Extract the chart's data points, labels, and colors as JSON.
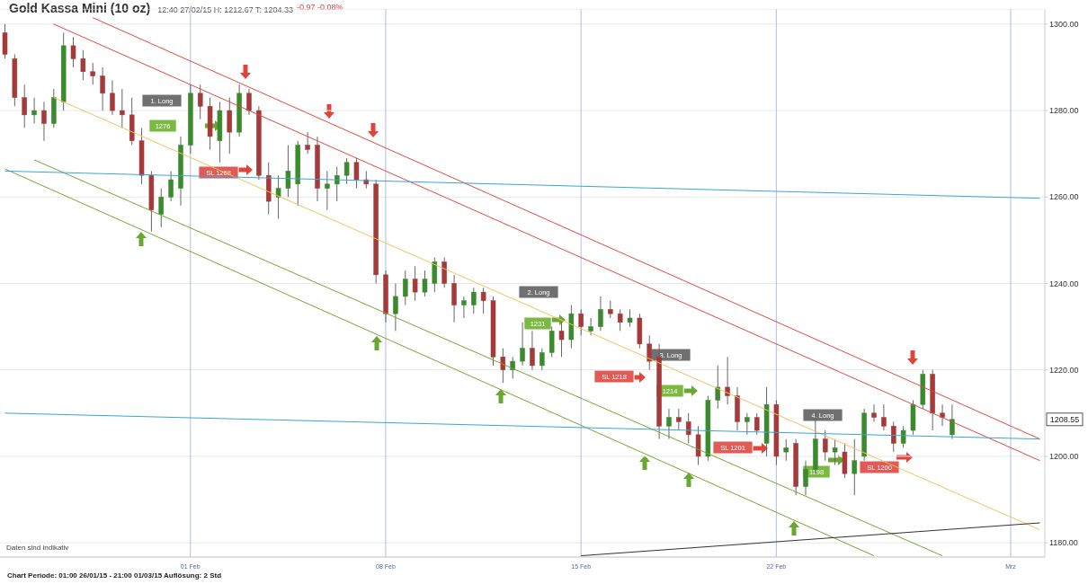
{
  "chart_data": {
    "type": "candlestick",
    "title": "Gold Kassa Mini (10 oz)",
    "subtitle": "12:40 27/02/15   H: 1212.67   T: 1204.33",
    "categories": [
      null,
      null,
      null,
      null,
      null,
      null,
      null,
      null,
      null,
      null,
      null,
      null,
      null,
      null,
      null,
      null,
      null,
      null,
      null,
      "01 Feb",
      null,
      null,
      null,
      null,
      null,
      null,
      null,
      null,
      null,
      null,
      null,
      null,
      null,
      null,
      null,
      null,
      null,
      null,
      null,
      "08 Feb",
      null,
      null,
      null,
      null,
      null,
      null,
      null,
      null,
      null,
      null,
      null,
      null,
      null,
      null,
      null,
      null,
      null,
      null,
      null,
      "15 Feb",
      null,
      null,
      null,
      null,
      null,
      null,
      null,
      null,
      null,
      null,
      null,
      null,
      null,
      null,
      null,
      null,
      null,
      null,
      null,
      "22 Feb",
      null,
      null,
      null,
      null,
      null,
      null,
      null,
      null,
      null,
      null,
      null,
      null,
      null,
      null,
      null,
      null,
      null,
      null,
      null,
      null,
      null,
      null,
      null,
      "Mrz",
      null,
      null,
      null
    ],
    "ohlc": [
      [
        1298,
        1300,
        1292,
        1293
      ],
      [
        1292,
        1293,
        1281,
        1283
      ],
      [
        1283,
        1286,
        1276,
        1279
      ],
      [
        1279,
        1283,
        1277,
        1280
      ],
      [
        1280,
        1282,
        1273,
        1277
      ],
      [
        1277,
        1285,
        1276,
        1283
      ],
      [
        1282,
        1298,
        1280,
        1295
      ],
      [
        1295,
        1297,
        1290,
        1292
      ],
      [
        1292,
        1294,
        1287,
        1289
      ],
      [
        1289,
        1291,
        1286,
        1288
      ],
      [
        1288,
        1290,
        1280,
        1284
      ],
      [
        1284,
        1287,
        1279,
        1280
      ],
      [
        1280,
        1285,
        1276,
        1279
      ],
      [
        1279,
        1283,
        1272,
        1273
      ],
      [
        1273,
        1276,
        1263,
        1265
      ],
      [
        1265,
        1266,
        1252,
        1257
      ],
      [
        1256,
        1262,
        1253,
        1260
      ],
      [
        1260,
        1266,
        1259,
        1264
      ],
      [
        1262,
        1274,
        1258,
        1272
      ],
      [
        1272,
        1286,
        1270,
        1284
      ],
      [
        1284,
        1286,
        1278,
        1281
      ],
      [
        1281,
        1283,
        1271,
        1274
      ],
      [
        1273,
        1282,
        1268,
        1280
      ],
      [
        1280,
        1283,
        1270,
        1275
      ],
      [
        1275,
        1286,
        1274,
        1284
      ],
      [
        1284,
        1285,
        1279,
        1280
      ],
      [
        1280,
        1281,
        1264,
        1265
      ],
      [
        1265,
        1268,
        1256,
        1259
      ],
      [
        1260,
        1265,
        1255,
        1262
      ],
      [
        1262,
        1272,
        1260,
        1266
      ],
      [
        1263,
        1273,
        1258,
        1272
      ],
      [
        1272,
        1275,
        1270,
        1271
      ],
      [
        1272,
        1274,
        1259,
        1262
      ],
      [
        1262,
        1266,
        1257,
        1263
      ],
      [
        1263,
        1267,
        1259,
        1265
      ],
      [
        1265,
        1269,
        1263,
        1268
      ],
      [
        1268,
        1269,
        1262,
        1264
      ],
      [
        1264,
        1266,
        1262,
        1263
      ],
      [
        1263,
        1264,
        1240,
        1242
      ],
      [
        1242,
        1243,
        1231,
        1233
      ],
      [
        1233,
        1240,
        1229,
        1237
      ],
      [
        1237,
        1243,
        1235,
        1241
      ],
      [
        1241,
        1244,
        1236,
        1238
      ],
      [
        1238,
        1243,
        1237,
        1241
      ],
      [
        1240,
        1246,
        1238,
        1245
      ],
      [
        1245,
        1246,
        1239,
        1240
      ],
      [
        1240,
        1242,
        1231,
        1235
      ],
      [
        1235,
        1237,
        1232,
        1236
      ],
      [
        1235,
        1239,
        1233,
        1238
      ],
      [
        1238,
        1239,
        1233,
        1236
      ],
      [
        1236,
        1237,
        1221,
        1223
      ],
      [
        1223,
        1225,
        1217,
        1220
      ],
      [
        1220,
        1223,
        1218,
        1222
      ],
      [
        1222,
        1231,
        1221,
        1225
      ],
      [
        1225,
        1229,
        1220,
        1221
      ],
      [
        1221,
        1225,
        1220,
        1224
      ],
      [
        1224,
        1230,
        1223,
        1229
      ],
      [
        1229,
        1231,
        1223,
        1227
      ],
      [
        1227,
        1235,
        1225,
        1233
      ],
      [
        1233,
        1234,
        1228,
        1230
      ],
      [
        1229,
        1232,
        1228,
        1230
      ],
      [
        1230,
        1237,
        1229,
        1234
      ],
      [
        1234,
        1236,
        1232,
        1233
      ],
      [
        1233,
        1234,
        1229,
        1231
      ],
      [
        1231,
        1234,
        1230,
        1232
      ],
      [
        1232,
        1233,
        1225,
        1226
      ],
      [
        1226,
        1228,
        1220,
        1222
      ],
      [
        1223,
        1226,
        1204,
        1207
      ],
      [
        1207,
        1211,
        1204,
        1209
      ],
      [
        1209,
        1211,
        1206,
        1208
      ],
      [
        1208,
        1210,
        1203,
        1205
      ],
      [
        1205,
        1207,
        1198,
        1200
      ],
      [
        1200,
        1214,
        1199,
        1213
      ],
      [
        1213,
        1221,
        1211,
        1216
      ],
      [
        1216,
        1223,
        1212,
        1214
      ],
      [
        1214,
        1216,
        1206,
        1208
      ],
      [
        1208,
        1210,
        1205,
        1209
      ],
      [
        1209,
        1210,
        1205,
        1206
      ],
      [
        1203,
        1216,
        1200,
        1212
      ],
      [
        1212,
        1213,
        1198,
        1200
      ],
      [
        1201,
        1204,
        1199,
        1202
      ],
      [
        1203,
        1204,
        1191,
        1193
      ],
      [
        1193,
        1199,
        1191,
        1197
      ],
      [
        1197,
        1210,
        1196,
        1204
      ],
      [
        1204,
        1206,
        1199,
        1201
      ],
      [
        1201,
        1204,
        1198,
        1202
      ],
      [
        1201,
        1203,
        1195,
        1196
      ],
      [
        1196,
        1204,
        1191,
        1199
      ],
      [
        1200,
        1211,
        1199,
        1210
      ],
      [
        1210,
        1212,
        1208,
        1209
      ],
      [
        1209,
        1212,
        1206,
        1207
      ],
      [
        1207,
        1208,
        1201,
        1203
      ],
      [
        1203,
        1207,
        1202,
        1206
      ],
      [
        1206,
        1213,
        1205,
        1212
      ],
      [
        1212,
        1220,
        1211,
        1219
      ],
      [
        1219,
        1220,
        1206,
        1210
      ],
      [
        1210,
        1212,
        1207,
        1209
      ],
      [
        1205,
        1212,
        1204,
        1208.55
      ],
      null,
      null,
      null,
      null,
      null,
      null,
      null,
      null,
      null
    ],
    "colors": [
      "#a43a3a",
      "#a43a3a",
      "#a43a3a",
      "#3b8a2e",
      "#a43a3a",
      "#3b8a2e",
      "#3b8a2e",
      "#a43a3a",
      "#a43a3a",
      "#a43a3a",
      "#a43a3a",
      "#a43a3a",
      "#a43a3a",
      "#a43a3a",
      "#a43a3a",
      "#a43a3a",
      "#3b8a2e",
      "#3b8a2e",
      "#3b8a2e",
      "#3b8a2e",
      "#a43a3a",
      "#a43a3a",
      "#3b8a2e",
      "#a43a3a",
      "#3b8a2e",
      "#a43a3a",
      "#a43a3a",
      "#a43a3a",
      "#3b8a2e",
      "#3b8a2e",
      "#3b8a2e",
      "#a43a3a",
      "#a43a3a",
      "#3b8a2e",
      "#3b8a2e",
      "#3b8a2e",
      "#a43a3a",
      "#a43a3a",
      "#a43a3a",
      "#a43a3a",
      "#3b8a2e",
      "#3b8a2e",
      "#a43a3a",
      "#3b8a2e",
      "#3b8a2e",
      "#a43a3a",
      "#a43a3a",
      "#3b8a2e",
      "#3b8a2e",
      "#a43a3a",
      "#a43a3a",
      "#a43a3a",
      "#3b8a2e",
      "#3b8a2e",
      "#a43a3a",
      "#3b8a2e",
      "#3b8a2e",
      "#a43a3a",
      "#3b8a2e",
      "#a43a3a",
      "#3b8a2e",
      "#3b8a2e",
      "#a43a3a",
      "#a43a3a",
      "#3b8a2e",
      "#a43a3a",
      "#a43a3a",
      "#a43a3a",
      "#3b8a2e",
      "#a43a3a",
      "#a43a3a",
      "#a43a3a",
      "#3b8a2e",
      "#3b8a2e",
      "#a43a3a",
      "#a43a3a",
      "#3b8a2e",
      "#a43a3a",
      "#3b8a2e",
      "#a43a3a",
      "#3b8a2e",
      "#a43a3a",
      "#3b8a2e",
      "#3b8a2e",
      "#a43a3a",
      "#3b8a2e",
      "#a43a3a",
      "#3b8a2e",
      "#3b8a2e",
      "#a43a3a",
      "#a43a3a",
      "#a43a3a",
      "#3b8a2e",
      "#3b8a2e",
      "#3b8a2e",
      "#a43a3a",
      "#a43a3a",
      "#3b8a2e",
      null,
      null,
      null,
      null,
      null,
      null,
      null,
      null,
      null
    ],
    "series": [
      {
        "type": "line",
        "color": "#e04a40",
        "values": [
          null,
          null,
          null,
          null,
          null,
          null,
          null,
          null,
          null,
          1301.5,
          null,
          null,
          null,
          null,
          null,
          null,
          null,
          null,
          null,
          null,
          null,
          null,
          null,
          null,
          null,
          null,
          null,
          null,
          null,
          null,
          null,
          null,
          null,
          null,
          null,
          null,
          null,
          null,
          null,
          null,
          null,
          null,
          null,
          null,
          null,
          null,
          null,
          null,
          null,
          null,
          null,
          null,
          null,
          null,
          null,
          null,
          null,
          null,
          null,
          null,
          null,
          null,
          null,
          null,
          null,
          null,
          null,
          null,
          null,
          null,
          null,
          null,
          null,
          null,
          null,
          null,
          null,
          null,
          null,
          null,
          null,
          null,
          null,
          null,
          null,
          null,
          null,
          null,
          null,
          null,
          null,
          null,
          null,
          null,
          null,
          null,
          null,
          null,
          null,
          null,
          null,
          null,
          null,
          null,
          null,
          null,
          1204
        ]
      },
      {
        "type": "line",
        "color": "#e04a40",
        "values": [
          null,
          null,
          null,
          null,
          null,
          1300,
          null,
          null,
          null,
          null,
          null,
          null,
          null,
          null,
          null,
          null,
          null,
          null,
          null,
          null,
          null,
          null,
          null,
          null,
          null,
          null,
          null,
          null,
          null,
          null,
          null,
          null,
          null,
          null,
          null,
          null,
          null,
          null,
          null,
          null,
          null,
          null,
          null,
          null,
          null,
          null,
          null,
          null,
          null,
          null,
          null,
          null,
          null,
          null,
          null,
          null,
          null,
          null,
          null,
          null,
          null,
          null,
          null,
          null,
          null,
          null,
          null,
          null,
          null,
          null,
          null,
          null,
          null,
          null,
          null,
          null,
          null,
          null,
          null,
          null,
          null,
          null,
          null,
          null,
          null,
          null,
          null,
          null,
          null,
          null,
          null,
          null,
          null,
          null,
          null,
          null,
          null,
          null,
          null,
          null,
          null,
          null,
          null,
          null,
          null,
          null,
          1199
        ]
      },
      {
        "type": "line",
        "color": "#f2c35a",
        "values": [
          null,
          null,
          null,
          null,
          null,
          1283,
          null,
          null,
          null,
          null,
          null,
          null,
          null,
          null,
          null,
          null,
          null,
          null,
          null,
          null,
          null,
          null,
          null,
          null,
          null,
          null,
          null,
          null,
          null,
          null,
          null,
          null,
          null,
          null,
          null,
          null,
          null,
          null,
          null,
          null,
          null,
          null,
          null,
          null,
          null,
          null,
          null,
          null,
          null,
          null,
          null,
          null,
          null,
          null,
          null,
          null,
          null,
          null,
          null,
          null,
          null,
          null,
          null,
          null,
          null,
          null,
          null,
          null,
          null,
          null,
          null,
          null,
          null,
          null,
          null,
          null,
          null,
          null,
          null,
          null,
          null,
          null,
          null,
          null,
          null,
          null,
          null,
          null,
          null,
          null,
          null,
          null,
          null,
          null,
          null,
          null,
          null,
          null,
          null,
          null,
          null,
          null,
          null,
          null,
          null,
          null,
          1183
        ]
      },
      {
        "type": "line",
        "color": "#7ca332",
        "values": [
          null,
          null,
          null,
          1268.6,
          null,
          null,
          null,
          null,
          null,
          null,
          null,
          null,
          null,
          null,
          null,
          null,
          null,
          null,
          null,
          null,
          null,
          null,
          null,
          null,
          null,
          null,
          null,
          null,
          null,
          null,
          null,
          null,
          null,
          null,
          null,
          null,
          null,
          null,
          null,
          null,
          null,
          null,
          null,
          null,
          null,
          null,
          null,
          null,
          null,
          null,
          null,
          null,
          null,
          null,
          null,
          null,
          null,
          null,
          null,
          null,
          null,
          null,
          null,
          null,
          null,
          null,
          null,
          null,
          null,
          null,
          null,
          null,
          null,
          null,
          null,
          null,
          null,
          null,
          null,
          null,
          null,
          null,
          null,
          null,
          null,
          null,
          null,
          null,
          null,
          null,
          null,
          null,
          null,
          null,
          null,
          null,
          1177,
          null,
          null,
          null,
          null,
          null,
          null,
          null,
          null,
          null,
          null
        ]
      },
      {
        "type": "line",
        "color": "#7ca332",
        "values": [
          1266.5,
          null,
          null,
          null,
          null,
          null,
          null,
          null,
          null,
          null,
          null,
          null,
          null,
          null,
          null,
          null,
          null,
          null,
          null,
          null,
          null,
          null,
          null,
          null,
          null,
          null,
          null,
          null,
          null,
          null,
          null,
          null,
          null,
          null,
          null,
          null,
          null,
          null,
          null,
          null,
          null,
          null,
          null,
          null,
          null,
          null,
          null,
          null,
          null,
          null,
          null,
          null,
          null,
          null,
          null,
          null,
          null,
          null,
          null,
          null,
          null,
          null,
          null,
          null,
          null,
          null,
          null,
          null,
          null,
          null,
          null,
          null,
          null,
          null,
          null,
          null,
          null,
          null,
          null,
          null,
          null,
          null,
          null,
          null,
          null,
          null,
          null,
          null,
          null,
          1177,
          null,
          null,
          null,
          null,
          null,
          null,
          null,
          null,
          null,
          null,
          null,
          null,
          null,
          null,
          null,
          null,
          null
        ]
      },
      {
        "type": "line",
        "color": "#3aa6d8",
        "values": [
          1266,
          null,
          null,
          null,
          null,
          null,
          null,
          null,
          null,
          null,
          null,
          null,
          null,
          null,
          null,
          null,
          null,
          null,
          null,
          null,
          null,
          null,
          null,
          null,
          null,
          null,
          null,
          null,
          null,
          null,
          null,
          null,
          null,
          null,
          null,
          null,
          null,
          null,
          null,
          null,
          null,
          null,
          null,
          null,
          null,
          null,
          null,
          null,
          null,
          null,
          null,
          null,
          null,
          null,
          null,
          null,
          null,
          null,
          null,
          null,
          null,
          null,
          null,
          null,
          null,
          null,
          null,
          null,
          null,
          null,
          null,
          null,
          null,
          null,
          null,
          null,
          null,
          null,
          null,
          null,
          null,
          null,
          null,
          null,
          null,
          null,
          null,
          null,
          null,
          null,
          null,
          null,
          null,
          null,
          null,
          null,
          null,
          null,
          null,
          null,
          null,
          null,
          null,
          null,
          null,
          null,
          1259.7
        ]
      },
      {
        "type": "line",
        "color": "#3aa6d8",
        "values": [
          1210,
          null,
          null,
          null,
          null,
          null,
          null,
          null,
          null,
          null,
          null,
          null,
          null,
          null,
          null,
          null,
          null,
          null,
          null,
          null,
          null,
          null,
          null,
          null,
          null,
          null,
          null,
          null,
          null,
          null,
          null,
          null,
          null,
          null,
          null,
          null,
          null,
          null,
          null,
          null,
          null,
          null,
          null,
          null,
          null,
          null,
          null,
          null,
          null,
          null,
          null,
          null,
          null,
          null,
          null,
          null,
          null,
          null,
          null,
          null,
          null,
          null,
          null,
          null,
          null,
          null,
          null,
          null,
          null,
          null,
          null,
          null,
          null,
          null,
          null,
          null,
          null,
          null,
          null,
          null,
          null,
          null,
          null,
          null,
          null,
          null,
          null,
          null,
          null,
          null,
          null,
          null,
          null,
          null,
          null,
          null,
          null,
          null,
          null,
          null,
          null,
          null,
          null,
          null,
          null,
          null,
          1204
        ]
      },
      {
        "type": "line",
        "color": "#333333",
        "values": [
          null,
          null,
          null,
          null,
          null,
          null,
          null,
          null,
          null,
          null,
          null,
          null,
          null,
          null,
          null,
          null,
          null,
          null,
          null,
          null,
          null,
          null,
          null,
          null,
          null,
          null,
          null,
          null,
          null,
          null,
          null,
          null,
          null,
          null,
          null,
          null,
          null,
          null,
          null,
          null,
          null,
          null,
          null,
          null,
          null,
          null,
          null,
          null,
          null,
          null,
          null,
          null,
          null,
          null,
          null,
          null,
          null,
          null,
          null,
          1177,
          null,
          null,
          null,
          null,
          null,
          null,
          null,
          null,
          null,
          null,
          null,
          null,
          null,
          null,
          null,
          null,
          null,
          null,
          null,
          null,
          null,
          null,
          null,
          null,
          null,
          null,
          null,
          null,
          null,
          null,
          null,
          null,
          null,
          null,
          null,
          null,
          null,
          null,
          null,
          null,
          null,
          null,
          null,
          null,
          null,
          null,
          1184.6
        ]
      }
    ],
    "ylim": [
      1176.7,
      1303.5
    ],
    "yticks": [
      {
        "value": 1180,
        "label": "1180.00"
      },
      {
        "value": 1200,
        "label": "1200.00"
      },
      {
        "value": 1220,
        "label": "1220.00"
      },
      {
        "value": 1240,
        "label": "1240.00"
      },
      {
        "value": 1260,
        "label": "1260.00"
      },
      {
        "value": 1280,
        "label": "1280.00"
      },
      {
        "value": 1300,
        "label": "1300.00"
      }
    ],
    "grid": true,
    "annotations": [
      "-0.97  -0.08%",
      "Daten sind indikativ",
      "Chart Periode: 01:00 26/01/15 - 21:00 01/03/15     Auflösung: 2 Std",
      "1. Long",
      "1276",
      "SL 1268",
      "2. Long",
      "1231",
      "SL 1218",
      "3. Long",
      "1214",
      "4. Long",
      "SL 1201",
      "1198",
      "SL 1200",
      {
        "text": "1208.55",
        "y": 1208.55
      }
    ]
  }
}
